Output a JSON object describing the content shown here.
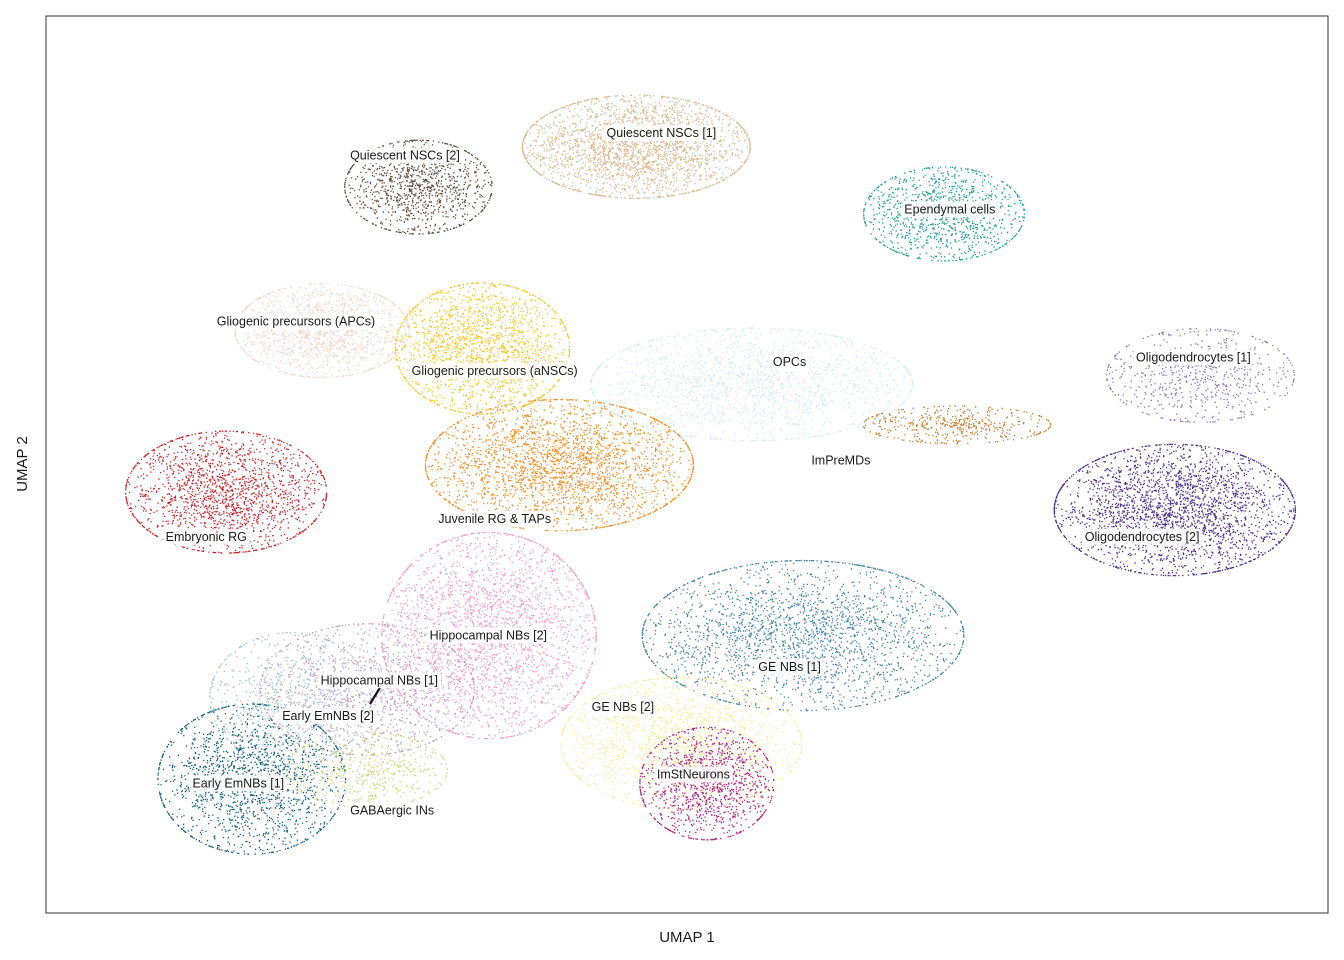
{
  "chart_data": {
    "type": "scatter",
    "title": "",
    "xlabel": "UMAP 1",
    "ylabel": "UMAP 2",
    "xlim": [
      0,
      100
    ],
    "ylim": [
      0,
      100
    ],
    "grid": false,
    "legend": "none (labels placed on clusters)",
    "series": [
      {
        "name": "Quiescent NSCs [1]",
        "color": "#d8b98e",
        "center": [
          46,
          85.5
        ],
        "spread": [
          8.5,
          5.5
        ],
        "n": 2600
      },
      {
        "name": "Quiescent NSCs [2]",
        "color": "#5e4a3c",
        "center": [
          29,
          81
        ],
        "spread": [
          5.5,
          5
        ],
        "n": 1100
      },
      {
        "name": "Ependymal cells",
        "color": "#1b9e94",
        "center": [
          70,
          78
        ],
        "spread": [
          6,
          5
        ],
        "n": 1100
      },
      {
        "name": "Gliogenic precursors (APCs)",
        "color": "#f2d4c5",
        "center": [
          21.5,
          65
        ],
        "spread": [
          6.5,
          5
        ],
        "n": 1300
      },
      {
        "name": "Gliogenic precursors (aNSCs)",
        "color": "#f5c518",
        "center": [
          34,
          63
        ],
        "spread": [
          6.5,
          7
        ],
        "n": 1700
      },
      {
        "name": "OPCs",
        "color": "#cfe9f5",
        "center": [
          55,
          59
        ],
        "spread": [
          12,
          6
        ],
        "n": 1600
      },
      {
        "name": "ImPreMDs",
        "color": "#c87a28",
        "center": [
          71,
          54.5
        ],
        "spread": [
          7,
          2
        ],
        "n": 450
      },
      {
        "name": "Oligodendrocytes [1]",
        "color": "#8b73b3",
        "center": [
          90,
          60
        ],
        "spread": [
          7,
          5
        ],
        "n": 650
      },
      {
        "name": "Oligodendrocytes [2]",
        "color": "#4b2d88",
        "center": [
          88,
          45
        ],
        "spread": [
          9,
          7
        ],
        "n": 2600
      },
      {
        "name": "Embryonic RG",
        "color": "#c62329",
        "center": [
          14,
          47
        ],
        "spread": [
          7.5,
          6.5
        ],
        "n": 1800
      },
      {
        "name": "Juvenile RG & TAPs",
        "color": "#f58a1f",
        "center": [
          40,
          50
        ],
        "spread": [
          10,
          7
        ],
        "n": 2600
      },
      {
        "name": "Hippocampal NBs [2]",
        "color": "#f29ac6",
        "center": [
          34.5,
          31
        ],
        "spread": [
          8,
          11
        ],
        "n": 2600
      },
      {
        "name": "Hippocampal NBs [1]",
        "color": "#bd97c4",
        "center": [
          25,
          25
        ],
        "spread": [
          8,
          7
        ],
        "n": 1100
      },
      {
        "name": "Early EmNBs [2]",
        "color": "#9dbfd2",
        "center": [
          19,
          24
        ],
        "spread": [
          6,
          7
        ],
        "n": 700
      },
      {
        "name": "GE NBs [1]",
        "color": "#3f82a6",
        "center": [
          59,
          31
        ],
        "spread": [
          12,
          8
        ],
        "n": 2400
      },
      {
        "name": "GE NBs [2]",
        "color": "#f2ee92",
        "center": [
          49.5,
          19
        ],
        "spread": [
          9,
          7
        ],
        "n": 1500
      },
      {
        "name": "ImStNeurons",
        "color": "#b1227f",
        "center": [
          51.5,
          14.5
        ],
        "spread": [
          5,
          6
        ],
        "n": 1200
      },
      {
        "name": "Early EmNBs [1]",
        "color": "#0e5c7a",
        "center": [
          16,
          15
        ],
        "spread": [
          7,
          8
        ],
        "n": 1600
      },
      {
        "name": "GABAergic INs",
        "color": "#c6d97a",
        "center": [
          25,
          16
        ],
        "spread": [
          6,
          4
        ],
        "n": 500
      }
    ],
    "labels": [
      {
        "text": "Quiescent NSCs [1]",
        "x": 48,
        "y": 87
      },
      {
        "text": "Quiescent NSCs [2]",
        "x": 28,
        "y": 84.5
      },
      {
        "text": "Ependymal cells",
        "x": 70.5,
        "y": 78.5
      },
      {
        "text": "Gliogenic precursors (APCs)",
        "x": 19.5,
        "y": 66
      },
      {
        "text": "Gliogenic precursors (aNSCs)",
        "x": 35,
        "y": 60.5
      },
      {
        "text": "OPCs",
        "x": 58,
        "y": 61.5
      },
      {
        "text": "Oligodendrocytes [1]",
        "x": 89.5,
        "y": 62
      },
      {
        "text": "ImPreMDs",
        "x": 62,
        "y": 50.5
      },
      {
        "text": "Embryonic RG",
        "x": 12.5,
        "y": 42
      },
      {
        "text": "Juvenile RG & TAPs",
        "x": 35,
        "y": 44
      },
      {
        "text": "Oligodendrocytes [2]",
        "x": 85.5,
        "y": 42
      },
      {
        "text": "Hippocampal NBs [2]",
        "x": 34.5,
        "y": 31
      },
      {
        "text": "GE NBs [1]",
        "x": 58,
        "y": 27.5
      },
      {
        "text": "Hippocampal NBs [1]",
        "x": 26,
        "y": 26
      },
      {
        "text": "Early EmNBs [2]",
        "x": 22,
        "y": 22
      },
      {
        "text": "GE NBs [2]",
        "x": 45,
        "y": 23
      },
      {
        "text": "ImStNeurons",
        "x": 50.5,
        "y": 15.5
      },
      {
        "text": "Early EmNBs [1]",
        "x": 15,
        "y": 14.5
      },
      {
        "text": "GABAergic INs",
        "x": 27,
        "y": 11.5
      }
    ]
  }
}
